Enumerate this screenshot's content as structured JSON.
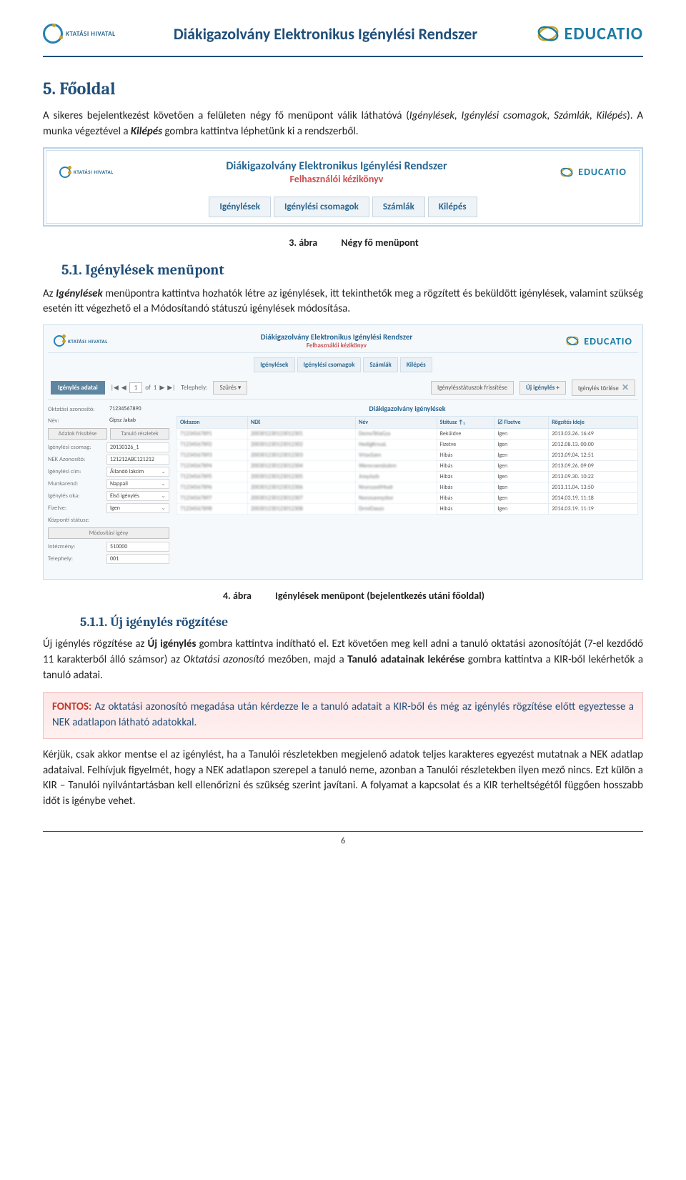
{
  "header": {
    "oktatasi_label": "KTATÁSI HIVATAL",
    "doc_title": "Diákigazolvány Elektronikus Igénylési Rendszer",
    "educatio_label": "EDUCATIO"
  },
  "section5": {
    "heading": "5.  Főoldal",
    "para1_a": "A sikeres bejelentkezést követően a felületen négy fő menüpont válik láthatóvá (",
    "para1_b": "Igénylések, Igénylési csomagok, Számlák, Kilépés",
    "para1_c": "). A munka végeztével a ",
    "para1_d": "Kilépés",
    "para1_e": " gombra kattintva léphetünk ki a rendszerből."
  },
  "fig3": {
    "num": "3. ábra",
    "caption": "Négy fő menüpont",
    "title_line1": "Diákigazolvány Elektronikus Igénylési Rendszer",
    "title_line2": "Felhasználói kézikönyv",
    "menu": [
      "Igénylések",
      "Igénylési csomagok",
      "Számlák",
      "Kilépés"
    ]
  },
  "section5_1": {
    "heading": "5.1. Igénylések menüpont",
    "para_a": "Az ",
    "para_b": "Igénylések",
    "para_c": " menüpontra kattintva hozhatók létre az igénylések, itt tekinthetők meg a rögzített és beküldött igénylések, valamint szükség esetén itt végezhető el a Módosítandó státuszú igénylések módosítása."
  },
  "fig4": {
    "num": "4. ábra",
    "caption": "Igénylések menüpont (bejelentkezés utáni főoldal)",
    "app_title": "Diákigazolvány Elektronikus Igénylési Rendszer",
    "app_subtitle": "Felhasználói kézikönyv",
    "menu": [
      "Igénylések",
      "Igénylési csomagok",
      "Számlák",
      "Kilépés"
    ],
    "toolbar": {
      "panel_label": "Igénylés adatai",
      "pager_of": "of",
      "pager_page": "1",
      "pager_total": "1",
      "telephely_label": "Telephely:",
      "szures_label": "Szűrés",
      "refresh_label": "Igénylésstátuszok frissítése",
      "new_label": "Új igénylés",
      "delete_label": "Igénylés törlése"
    },
    "side_fields": [
      {
        "k": "Oktatási azonosító:",
        "v": "71234567890",
        "type": "ro"
      },
      {
        "k": "Név:",
        "v": "Gipsz Jakab",
        "type": "ro"
      }
    ],
    "side_buttons": [
      "Adatok frissítése",
      "Tanuló részletek"
    ],
    "side_fields2": [
      {
        "k": "Igénylési csomag:",
        "v": "20130326_1",
        "type": "text"
      },
      {
        "k": "NEK Azonosító:",
        "v": "121212ABC121212",
        "type": "text"
      },
      {
        "k": "Igénylési cím:",
        "v": "Állandó lakcím",
        "type": "sel"
      },
      {
        "k": "Munkarend:",
        "v": "Nappali",
        "type": "sel"
      },
      {
        "k": "Igénylés oka:",
        "v": "Első igénylés",
        "type": "sel"
      },
      {
        "k": "Fizetve:",
        "v": "Igen",
        "type": "sel"
      },
      {
        "k": "Központi státusz:",
        "v": "",
        "type": "ro"
      }
    ],
    "side_button_mod": "Módosítási igény",
    "side_fields3": [
      {
        "k": "Intézmény:",
        "v": "510000",
        "type": "text"
      },
      {
        "k": "Telephely:",
        "v": "001",
        "type": "text"
      }
    ],
    "table": {
      "title": "Diákigazolvány igénylések",
      "columns": [
        "Oktazon",
        "NEK",
        "Név",
        "Státusz ↑₁",
        "Fizetve",
        "Rögzítés ideje"
      ],
      "rows": [
        [
          "71234567891",
          "200301230123012301",
          "DemoTélaGza",
          "Beküldve",
          "Igen",
          "2013.03.26. 16:49"
        ],
        [
          "71234567892",
          "200301230123012302",
          "HedigKrssaL",
          "Fizetve",
          "Igen",
          "2012.08.13. 00:00"
        ],
        [
          "71234567893",
          "200301230123012303",
          "VrtasSzen",
          "Hibás",
          "Igen",
          "2013.09.04. 12:51"
        ],
        [
          "71234567894",
          "200301230123012304",
          "Werecsendszkm",
          "Hibás",
          "Igen",
          "2013.09.26. 09:09"
        ],
        [
          "71234567895",
          "200301230123012305",
          "JnoyJozb",
          "Hibás",
          "Igen",
          "2013.09.30. 10:22"
        ],
        [
          "71234567896",
          "200301230123012306",
          "NrorszastModr",
          "Hibás",
          "Igen",
          "2013.11.04. 13:50"
        ],
        [
          "71234567897",
          "200301230123012307",
          "Nonzsannyzbsr",
          "Hibás",
          "Igen",
          "2014.03.19. 11:18"
        ],
        [
          "71234567898",
          "200301230123012308",
          "DrmiOaozs",
          "Hibás",
          "Igen",
          "2014.03.19. 11:19"
        ]
      ],
      "fizetve_check": "☑"
    }
  },
  "section5_1_1": {
    "heading": "5.1.1. Új igénylés rögzítése",
    "para1_a": "Új igénylés rögzítése az ",
    "para1_b": "Új igénylés",
    "para1_c": " gombra kattintva indítható el. Ezt követően meg kell adni a tanuló oktatási azonosítóját (7-el kezdődő 11 karakterből álló számsor) az ",
    "para1_d": "Oktatási azonosító",
    "para1_e": " mezőben, majd a ",
    "para1_f": "Tanuló adatainak lekérése",
    "para1_g": " gombra kattintva a KIR-ből lekérhetők a tanuló adatai."
  },
  "warn": {
    "lead": "FONTOS:",
    "rest": " Az oktatási azonosító megadása után kérdezze le a tanuló adatait a KIR-ből és még az igénylés rögzítése előtt egyeztesse a NEK adatlapon látható adatokkal."
  },
  "para_after": "Kérjük, csak akkor mentse el az igénylést, ha a Tanulói részletekben megjelenő adatok teljes karakteres egyezést mutatnak a NEK adatlap adataival. Felhívjuk figyelmét, hogy a NEK adatlapon szerepel a tanuló neme, azonban a Tanulói részletekben ilyen mező nincs. Ezt külön a KIR – Tanulói nyilvántartásban kell ellenőrizni és szükség szerint javítani. A folyamat a kapcsolat és a KIR terheltségétől függően hosszabb időt is igénybe vehet.",
  "page_number": "6"
}
